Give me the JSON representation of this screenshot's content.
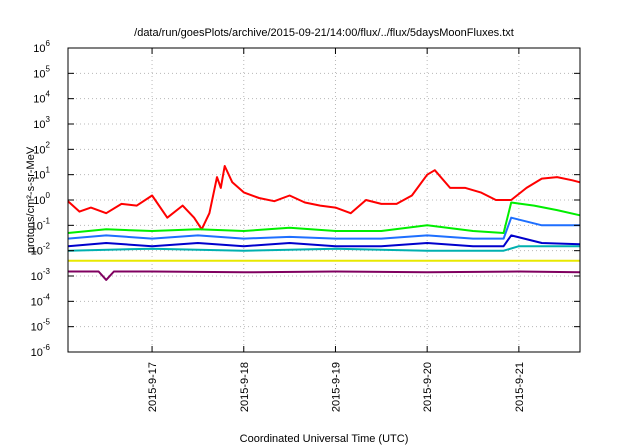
{
  "chart_data": {
    "type": "line",
    "title": "/data/run/goesPlots/archive/2015-09-21/14:00/flux/../flux/5daysMoonFluxes.txt",
    "xlabel": "Coordinated Universal Time (UTC)",
    "ylabel": "protons/cm²-s-sr-MeV",
    "y_scale": "log",
    "ylim": [
      1e-06,
      1000000.0
    ],
    "y_tick_exponents": [
      -6,
      -5,
      -4,
      -3,
      -2,
      -1,
      0,
      1,
      2,
      3,
      4,
      5,
      6
    ],
    "xlim": [
      "2015-09-16T02:00",
      "2015-09-21T16:00"
    ],
    "x_ticks": [
      {
        "label": "2015-9-17",
        "t": "2015-09-17T00:00"
      },
      {
        "label": "2015-9-18",
        "t": "2015-09-18T00:00"
      },
      {
        "label": "2015-9-19",
        "t": "2015-09-19T00:00"
      },
      {
        "label": "2015-9-20",
        "t": "2015-09-20T00:00"
      },
      {
        "label": "2015-9-21",
        "t": "2015-09-21T00:00"
      }
    ],
    "grid": true,
    "series": [
      {
        "color": "#ff0000",
        "points": [
          [
            "2015-09-16T02:00",
            0.9
          ],
          [
            "2015-09-16T05:00",
            0.35
          ],
          [
            "2015-09-16T08:00",
            0.5
          ],
          [
            "2015-09-16T12:00",
            0.3
          ],
          [
            "2015-09-16T16:00",
            0.7
          ],
          [
            "2015-09-16T20:00",
            0.6
          ],
          [
            "2015-09-17T00:00",
            1.5
          ],
          [
            "2015-09-17T04:00",
            0.2
          ],
          [
            "2015-09-17T08:00",
            0.6
          ],
          [
            "2015-09-17T11:00",
            0.2
          ],
          [
            "2015-09-17T13:00",
            0.07
          ],
          [
            "2015-09-17T15:00",
            0.3
          ],
          [
            "2015-09-17T17:00",
            8.0
          ],
          [
            "2015-09-17T18:00",
            3.0
          ],
          [
            "2015-09-17T19:00",
            22.0
          ],
          [
            "2015-09-17T21:00",
            5.0
          ],
          [
            "2015-09-18T00:00",
            2.0
          ],
          [
            "2015-09-18T04:00",
            1.2
          ],
          [
            "2015-09-18T08:00",
            0.9
          ],
          [
            "2015-09-18T12:00",
            1.5
          ],
          [
            "2015-09-18T16:00",
            0.8
          ],
          [
            "2015-09-18T20:00",
            0.6
          ],
          [
            "2015-09-19T00:00",
            0.5
          ],
          [
            "2015-09-19T04:00",
            0.3
          ],
          [
            "2015-09-19T08:00",
            1.0
          ],
          [
            "2015-09-19T12:00",
            0.7
          ],
          [
            "2015-09-19T16:00",
            0.7
          ],
          [
            "2015-09-19T20:00",
            1.5
          ],
          [
            "2015-09-20T00:00",
            10.0
          ],
          [
            "2015-09-20T02:00",
            15.0
          ],
          [
            "2015-09-20T06:00",
            3.0
          ],
          [
            "2015-09-20T10:00",
            3.0
          ],
          [
            "2015-09-20T14:00",
            2.0
          ],
          [
            "2015-09-20T18:00",
            1.0
          ],
          [
            "2015-09-20T22:00",
            1.0
          ],
          [
            "2015-09-21T02:00",
            3.0
          ],
          [
            "2015-09-21T06:00",
            7.0
          ],
          [
            "2015-09-21T10:00",
            8.0
          ],
          [
            "2015-09-21T14:00",
            6.0
          ],
          [
            "2015-09-21T16:00",
            5.0
          ]
        ]
      },
      {
        "color": "#00ee00",
        "points": [
          [
            "2015-09-16T02:00",
            0.05
          ],
          [
            "2015-09-16T12:00",
            0.07
          ],
          [
            "2015-09-17T00:00",
            0.06
          ],
          [
            "2015-09-17T12:00",
            0.07
          ],
          [
            "2015-09-18T00:00",
            0.06
          ],
          [
            "2015-09-18T12:00",
            0.08
          ],
          [
            "2015-09-19T00:00",
            0.06
          ],
          [
            "2015-09-19T12:00",
            0.06
          ],
          [
            "2015-09-20T00:00",
            0.1
          ],
          [
            "2015-09-20T12:00",
            0.06
          ],
          [
            "2015-09-20T20:00",
            0.05
          ],
          [
            "2015-09-20T22:00",
            0.8
          ],
          [
            "2015-09-21T04:00",
            0.6
          ],
          [
            "2015-09-21T10:00",
            0.4
          ],
          [
            "2015-09-21T16:00",
            0.25
          ]
        ]
      },
      {
        "color": "#1e6fff",
        "points": [
          [
            "2015-09-16T02:00",
            0.03
          ],
          [
            "2015-09-16T12:00",
            0.04
          ],
          [
            "2015-09-17T00:00",
            0.03
          ],
          [
            "2015-09-17T12:00",
            0.04
          ],
          [
            "2015-09-18T00:00",
            0.03
          ],
          [
            "2015-09-18T12:00",
            0.035
          ],
          [
            "2015-09-19T00:00",
            0.03
          ],
          [
            "2015-09-19T12:00",
            0.03
          ],
          [
            "2015-09-20T00:00",
            0.04
          ],
          [
            "2015-09-20T12:00",
            0.03
          ],
          [
            "2015-09-20T20:00",
            0.03
          ],
          [
            "2015-09-20T22:00",
            0.2
          ],
          [
            "2015-09-21T06:00",
            0.1
          ],
          [
            "2015-09-21T16:00",
            0.1
          ]
        ]
      },
      {
        "color": "#00b0b0",
        "points": [
          [
            "2015-09-16T02:00",
            0.01
          ],
          [
            "2015-09-17T00:00",
            0.012
          ],
          [
            "2015-09-18T00:00",
            0.01
          ],
          [
            "2015-09-19T00:00",
            0.012
          ],
          [
            "2015-09-20T00:00",
            0.01
          ],
          [
            "2015-09-20T20:00",
            0.01
          ],
          [
            "2015-09-21T00:00",
            0.015
          ],
          [
            "2015-09-21T16:00",
            0.015
          ]
        ]
      },
      {
        "color": "#0000cc",
        "points": [
          [
            "2015-09-16T02:00",
            0.015
          ],
          [
            "2015-09-16T12:00",
            0.02
          ],
          [
            "2015-09-17T00:00",
            0.015
          ],
          [
            "2015-09-17T12:00",
            0.02
          ],
          [
            "2015-09-18T00:00",
            0.015
          ],
          [
            "2015-09-18T12:00",
            0.02
          ],
          [
            "2015-09-19T00:00",
            0.015
          ],
          [
            "2015-09-19T12:00",
            0.015
          ],
          [
            "2015-09-20T00:00",
            0.02
          ],
          [
            "2015-09-20T12:00",
            0.015
          ],
          [
            "2015-09-20T20:00",
            0.015
          ],
          [
            "2015-09-20T22:00",
            0.04
          ],
          [
            "2015-09-21T06:00",
            0.02
          ],
          [
            "2015-09-21T16:00",
            0.018
          ]
        ]
      },
      {
        "color": "#e8e800",
        "points": [
          [
            "2015-09-16T02:00",
            0.004
          ],
          [
            "2015-09-17T00:00",
            0.004
          ],
          [
            "2015-09-18T00:00",
            0.004
          ],
          [
            "2015-09-19T00:00",
            0.004
          ],
          [
            "2015-09-20T00:00",
            0.004
          ],
          [
            "2015-09-21T00:00",
            0.004
          ],
          [
            "2015-09-21T16:00",
            0.004
          ]
        ]
      },
      {
        "color": "#800060",
        "points": [
          [
            "2015-09-16T02:00",
            0.0015
          ],
          [
            "2015-09-16T10:00",
            0.0015
          ],
          [
            "2015-09-16T12:00",
            0.0007
          ],
          [
            "2015-09-16T14:00",
            0.0015
          ],
          [
            "2015-09-17T00:00",
            0.0015
          ],
          [
            "2015-09-18T00:00",
            0.0014
          ],
          [
            "2015-09-19T00:00",
            0.0015
          ],
          [
            "2015-09-20T00:00",
            0.0014
          ],
          [
            "2015-09-21T00:00",
            0.0015
          ],
          [
            "2015-09-21T16:00",
            0.0014
          ]
        ]
      }
    ]
  }
}
